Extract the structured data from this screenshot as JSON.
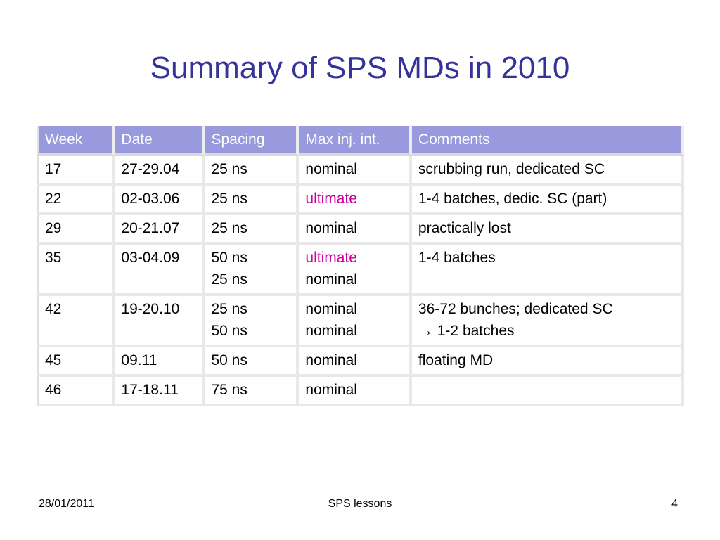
{
  "title": "Summary of SPS MDs in 2010",
  "table": {
    "headers": [
      "Week",
      "Date",
      "Spacing",
      "Max inj. int.",
      "Comments"
    ],
    "rows": [
      {
        "week": "17",
        "date": "27-29.04",
        "spacing": [
          "25 ns"
        ],
        "max_inj": [
          {
            "text": "nominal",
            "accent": false
          }
        ],
        "comments": [
          "scrubbing run, dedicated SC"
        ]
      },
      {
        "week": "22",
        "date": "02-03.06",
        "spacing": [
          "25 ns"
        ],
        "max_inj": [
          {
            "text": "ultimate",
            "accent": true
          }
        ],
        "comments": [
          "1-4 batches, dedic. SC (part)"
        ]
      },
      {
        "week": "29",
        "date": "20-21.07",
        "spacing": [
          "25 ns"
        ],
        "max_inj": [
          {
            "text": "nominal",
            "accent": false
          }
        ],
        "comments": [
          "practically lost"
        ]
      },
      {
        "week": "35",
        "date": "03-04.09",
        "spacing": [
          "50 ns",
          "25 ns"
        ],
        "max_inj": [
          {
            "text": "ultimate",
            "accent": true
          },
          {
            "text": "nominal",
            "accent": false
          }
        ],
        "comments": [
          "1-4 batches"
        ]
      },
      {
        "week": "42",
        "date": "19-20.10",
        "spacing": [
          "25 ns",
          "50 ns"
        ],
        "max_inj": [
          {
            "text": "nominal",
            "accent": false
          },
          {
            "text": "nominal",
            "accent": false
          }
        ],
        "comments": [
          "36-72 bunches; dedicated SC",
          "→ 1-2 batches"
        ]
      },
      {
        "week": "45",
        "date": "09.11",
        "spacing": [
          "50 ns"
        ],
        "max_inj": [
          {
            "text": "nominal",
            "accent": false
          }
        ],
        "comments": [
          "floating MD"
        ]
      },
      {
        "week": "46",
        "date": "17-18.11",
        "spacing": [
          "75 ns"
        ],
        "max_inj": [
          {
            "text": "nominal",
            "accent": false
          }
        ],
        "comments": [
          ""
        ]
      }
    ]
  },
  "footer": {
    "date": "28/01/2011",
    "center": "SPS lessons",
    "page": "4"
  },
  "colors": {
    "title": "#333399",
    "header_bg": "#9999dd",
    "accent": "#cc0099"
  }
}
